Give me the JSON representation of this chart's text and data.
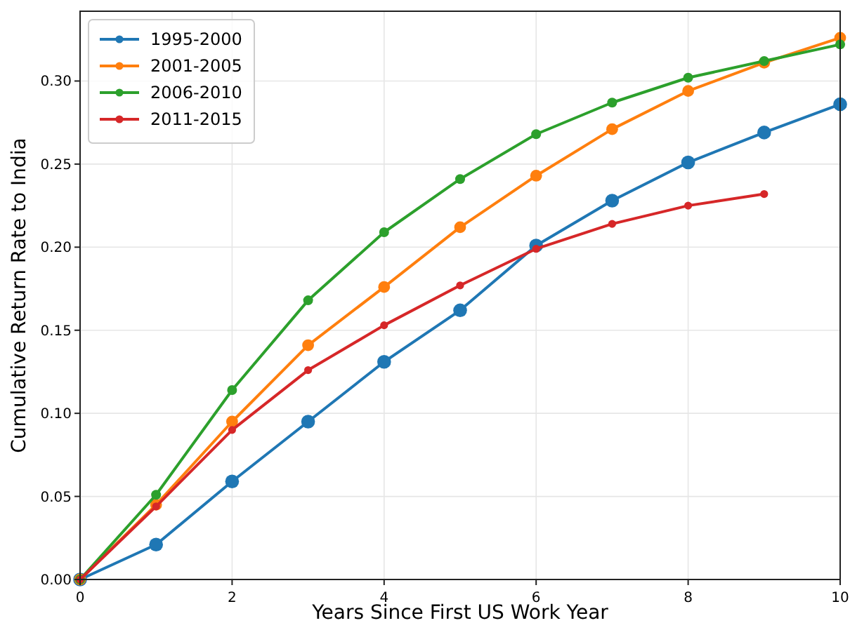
{
  "chart_data": {
    "type": "line",
    "xlabel": "Years Since First US Work Year",
    "ylabel": "Cumulative Return Rate to India",
    "x": [
      0,
      1,
      2,
      3,
      4,
      5,
      6,
      7,
      8,
      9,
      10
    ],
    "series": [
      {
        "name": "1995-2000",
        "color": "#1f77b4",
        "values": [
          0,
          0.021,
          0.059,
          0.095,
          0.131,
          0.162,
          0.201,
          0.228,
          0.251,
          0.269,
          0.286
        ]
      },
      {
        "name": "2001-2005",
        "color": "#ff7f0e",
        "values": [
          0,
          0.045,
          0.095,
          0.141,
          0.176,
          0.212,
          0.243,
          0.271,
          0.294,
          0.311,
          0.326
        ]
      },
      {
        "name": "2006-2010",
        "color": "#2ca02c",
        "values": [
          0,
          0.051,
          0.114,
          0.168,
          0.209,
          0.241,
          0.268,
          0.287,
          0.302,
          0.312,
          0.322
        ]
      },
      {
        "name": "2011-2015",
        "color": "#d62728",
        "values": [
          0,
          0.044,
          0.09,
          0.126,
          0.153,
          0.177,
          0.199,
          0.214,
          0.225,
          0.232,
          null
        ]
      }
    ],
    "xlim": [
      0,
      10
    ],
    "xticks": [
      0,
      2,
      4,
      6,
      8,
      10
    ],
    "ylim": [
      0,
      0.342
    ],
    "yticks": [
      {
        "value": 0,
        "label": "0.00"
      },
      {
        "value": 0.05,
        "label": "0.05"
      },
      {
        "value": 0.1,
        "label": "0.10"
      },
      {
        "value": 0.15,
        "label": "0.15"
      },
      {
        "value": 0.2,
        "label": "0.20"
      },
      {
        "value": 0.25,
        "label": "0.25"
      },
      {
        "value": 0.3,
        "label": "0.30"
      }
    ],
    "grid": true,
    "legend": "top left",
    "marker": "circle",
    "line_style": "solid"
  }
}
